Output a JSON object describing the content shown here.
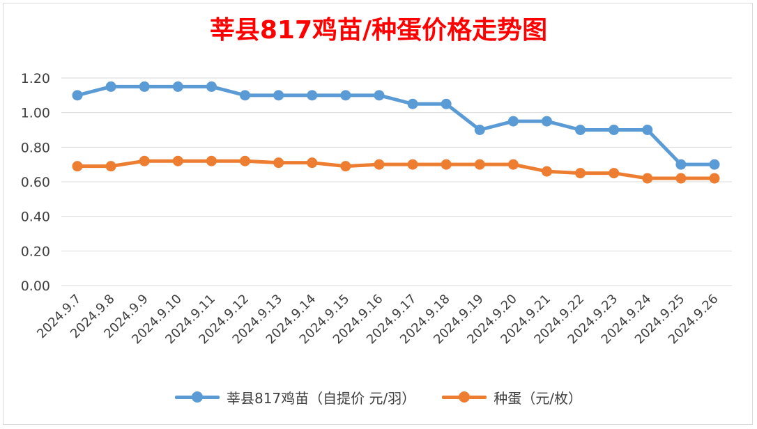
{
  "chart_data": {
    "type": "line",
    "title": "莘县817鸡苗/种蛋价格走势图",
    "xlabel": "",
    "ylabel": "",
    "categories": [
      "2024.9.7",
      "2024.9.8",
      "2024.9.9",
      "2024.9.10",
      "2024.9.11",
      "2024.9.12",
      "2024.9.13",
      "2024.9.14",
      "2024.9.15",
      "2024.9.16",
      "2024.9.17",
      "2024.9.18",
      "2024.9.19",
      "2024.9.20",
      "2024.9.21",
      "2024.9.22",
      "2024.9.23",
      "2024.9.24",
      "2024.9.25",
      "2024.9.26"
    ],
    "series": [
      {
        "name": "莘县817鸡苗（自提价 元/羽）",
        "color": "#5b9bd5",
        "values": [
          1.1,
          1.15,
          1.15,
          1.15,
          1.15,
          1.1,
          1.1,
          1.1,
          1.1,
          1.1,
          1.05,
          1.05,
          0.9,
          0.95,
          0.95,
          0.9,
          0.9,
          0.9,
          0.7,
          0.7
        ]
      },
      {
        "name": "种蛋（元/枚）",
        "color": "#ed7d31",
        "values": [
          0.69,
          0.69,
          0.72,
          0.72,
          0.72,
          0.72,
          0.71,
          0.71,
          0.69,
          0.7,
          0.7,
          0.7,
          0.7,
          0.7,
          0.66,
          0.65,
          0.65,
          0.62,
          0.62,
          0.62
        ]
      }
    ],
    "ylim": [
      0,
      1.2
    ],
    "yticks": [
      "0.00",
      "0.20",
      "0.40",
      "0.60",
      "0.80",
      "1.00",
      "1.20"
    ],
    "grid": true,
    "legend_position": "bottom"
  }
}
